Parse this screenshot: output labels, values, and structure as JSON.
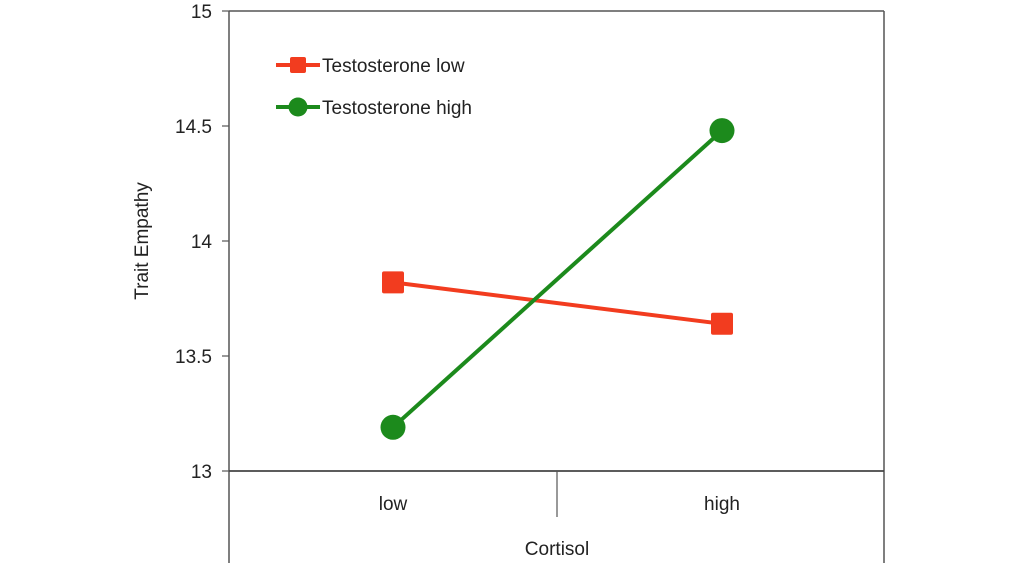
{
  "chart_data": {
    "type": "line",
    "title": "",
    "xlabel": "Cortisol",
    "ylabel": "Trait Empathy",
    "categories": [
      "low",
      "high"
    ],
    "ylim": [
      13,
      15
    ],
    "yticks": [
      "13",
      "13.5",
      "14",
      "14.5",
      "15"
    ],
    "grid": false,
    "legend_position": "top-left",
    "series": [
      {
        "name": "Testosterone low",
        "values": [
          13.82,
          13.64
        ],
        "color": "#f23c1f",
        "marker": "square"
      },
      {
        "name": "Testosterone high",
        "values": [
          13.19,
          14.48
        ],
        "color": "#1c8a1c",
        "marker": "circle"
      }
    ]
  }
}
